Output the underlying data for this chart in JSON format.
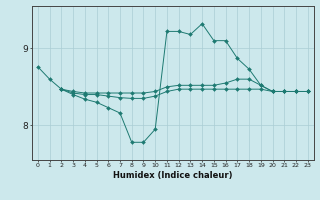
{
  "background_color": "#cce8ec",
  "grid_color": "#aacdd4",
  "line_color": "#1e7a72",
  "xlabel": "Humidex (Indice chaleur)",
  "xlim": [
    -0.5,
    23.5
  ],
  "ylim": [
    7.55,
    9.55
  ],
  "yticks": [
    8,
    9
  ],
  "xticks": [
    0,
    1,
    2,
    3,
    4,
    5,
    6,
    7,
    8,
    9,
    10,
    11,
    12,
    13,
    14,
    15,
    16,
    17,
    18,
    19,
    20,
    21,
    22,
    23
  ],
  "series1": [
    [
      0,
      8.76
    ],
    [
      1,
      8.6
    ],
    [
      2,
      8.47
    ],
    [
      3,
      8.4
    ],
    [
      4,
      8.34
    ],
    [
      5,
      8.3
    ],
    [
      6,
      8.23
    ],
    [
      7,
      8.16
    ],
    [
      8,
      7.78
    ],
    [
      9,
      7.78
    ],
    [
      10,
      7.95
    ],
    [
      11,
      9.22
    ],
    [
      12,
      9.22
    ],
    [
      13,
      9.18
    ],
    [
      14,
      9.32
    ],
    [
      15,
      9.1
    ],
    [
      16,
      9.1
    ],
    [
      17,
      8.87
    ],
    [
      18,
      8.73
    ],
    [
      19,
      8.52
    ],
    [
      20,
      8.44
    ],
    [
      21,
      8.44
    ],
    [
      22,
      8.44
    ],
    [
      23,
      8.44
    ]
  ],
  "series2": [
    [
      2,
      8.47
    ],
    [
      3,
      8.44
    ],
    [
      4,
      8.42
    ],
    [
      5,
      8.42
    ],
    [
      6,
      8.42
    ],
    [
      7,
      8.42
    ],
    [
      8,
      8.42
    ],
    [
      9,
      8.42
    ],
    [
      10,
      8.44
    ],
    [
      11,
      8.5
    ],
    [
      12,
      8.52
    ],
    [
      13,
      8.52
    ],
    [
      14,
      8.52
    ],
    [
      15,
      8.52
    ],
    [
      16,
      8.55
    ],
    [
      17,
      8.6
    ],
    [
      18,
      8.6
    ],
    [
      19,
      8.52
    ],
    [
      20,
      8.44
    ],
    [
      21,
      8.44
    ],
    [
      22,
      8.44
    ],
    [
      23,
      8.44
    ]
  ],
  "series3": [
    [
      2,
      8.47
    ],
    [
      3,
      8.42
    ],
    [
      4,
      8.4
    ],
    [
      5,
      8.4
    ],
    [
      6,
      8.38
    ],
    [
      7,
      8.36
    ],
    [
      8,
      8.35
    ],
    [
      9,
      8.35
    ],
    [
      10,
      8.38
    ],
    [
      11,
      8.44
    ],
    [
      12,
      8.47
    ],
    [
      13,
      8.47
    ],
    [
      14,
      8.47
    ],
    [
      15,
      8.47
    ],
    [
      16,
      8.47
    ],
    [
      17,
      8.47
    ],
    [
      18,
      8.47
    ],
    [
      19,
      8.47
    ],
    [
      20,
      8.44
    ],
    [
      21,
      8.44
    ],
    [
      22,
      8.44
    ],
    [
      23,
      8.44
    ]
  ]
}
